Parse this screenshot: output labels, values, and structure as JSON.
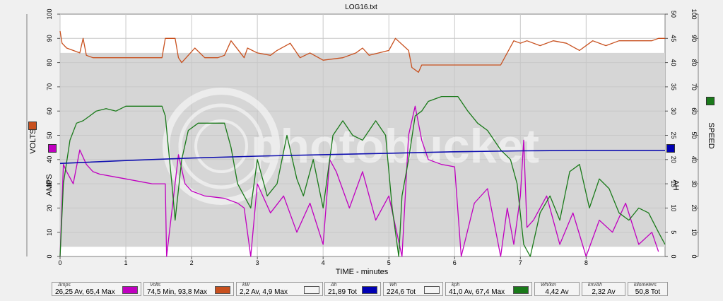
{
  "chart_data": {
    "type": "line",
    "title": "LOG16.txt",
    "xlabel": "TIME - minutes",
    "xlim": [
      0,
      9.2
    ],
    "x_ticks": [
      "0",
      "1",
      "2",
      "3",
      "4",
      "5",
      "6",
      "7",
      "8"
    ],
    "left_axis": {
      "labels": [
        "VOLTS",
        "AMPS"
      ],
      "ylim": [
        0,
        100
      ],
      "ticks": [
        "0",
        "10",
        "20",
        "30",
        "40",
        "50",
        "60",
        "70",
        "80",
        "90",
        "100"
      ]
    },
    "right_axis_inner": {
      "label": "AH",
      "ylim": [
        0,
        50
      ],
      "ticks": [
        "0",
        "5",
        "10",
        "15",
        "20",
        "25",
        "30",
        "35",
        "40",
        "45",
        "50"
      ]
    },
    "right_axis_outer": {
      "label": "SPEED",
      "ylim": [
        0,
        100
      ],
      "ticks": [
        "0",
        "10",
        "20",
        "30",
        "40",
        "50",
        "60",
        "70",
        "80",
        "90",
        "100"
      ]
    },
    "grid": true,
    "series": [
      {
        "name": "Volts",
        "axis": "left",
        "color": "#c8501e",
        "x": [
          0,
          0.03,
          0.1,
          0.2,
          0.3,
          0.35,
          0.4,
          0.5,
          0.7,
          1.0,
          1.3,
          1.55,
          1.6,
          1.65,
          1.75,
          1.8,
          1.85,
          1.95,
          2.05,
          2.2,
          2.4,
          2.5,
          2.6,
          2.8,
          2.85,
          3.0,
          3.2,
          3.3,
          3.5,
          3.65,
          3.8,
          4.0,
          4.3,
          4.5,
          4.6,
          4.7,
          5.0,
          5.1,
          5.3,
          5.35,
          5.45,
          5.5,
          5.6,
          5.8,
          6.0,
          6.3,
          6.5,
          6.7,
          6.9,
          7.0,
          7.1,
          7.3,
          7.5,
          7.7,
          7.9,
          8.1,
          8.3,
          8.5,
          8.8,
          9.0,
          9.1,
          9.2
        ],
        "values": [
          93,
          88,
          86,
          85,
          84,
          90,
          83,
          82,
          82,
          82,
          82,
          82,
          90,
          90,
          90,
          82,
          80,
          83,
          86,
          82,
          82,
          83,
          89,
          82,
          86,
          84,
          83,
          85,
          88,
          82,
          84,
          81,
          82,
          84,
          86,
          83,
          85,
          90,
          85,
          78,
          76,
          79,
          79,
          79,
          79,
          79,
          79,
          79,
          89,
          88,
          89,
          87,
          89,
          88,
          85,
          89,
          87,
          89,
          89,
          89,
          90,
          90
        ]
      },
      {
        "name": "Amps",
        "axis": "left",
        "color": "#c000c0",
        "x": [
          0,
          0.05,
          0.1,
          0.2,
          0.3,
          0.4,
          0.5,
          0.6,
          0.8,
          1.0,
          1.2,
          1.4,
          1.6,
          1.62,
          1.8,
          1.9,
          2.0,
          2.2,
          2.5,
          2.7,
          2.8,
          2.9,
          3.0,
          3.2,
          3.4,
          3.6,
          3.8,
          4.0,
          4.1,
          4.2,
          4.4,
          4.6,
          4.8,
          5.0,
          5.2,
          5.3,
          5.4,
          5.5,
          5.6,
          5.8,
          6.0,
          6.1,
          6.3,
          6.5,
          6.7,
          6.8,
          6.9,
          7.0,
          7.05,
          7.1,
          7.2,
          7.4,
          7.6,
          7.8,
          8.0,
          8.2,
          8.4,
          8.6,
          8.8,
          9.0,
          9.1
        ],
        "values": [
          0,
          38,
          35,
          30,
          44,
          38,
          35,
          34,
          33,
          32,
          31,
          30,
          30,
          0,
          42,
          30,
          27,
          25,
          24,
          22,
          20,
          0,
          30,
          18,
          25,
          10,
          22,
          5,
          40,
          35,
          20,
          35,
          15,
          25,
          0,
          50,
          62,
          48,
          40,
          38,
          37,
          0,
          22,
          28,
          0,
          20,
          5,
          25,
          48,
          12,
          15,
          25,
          5,
          18,
          0,
          15,
          10,
          22,
          5,
          10,
          2
        ]
      },
      {
        "name": "Ah",
        "axis": "right_inner",
        "color": "#1010b0",
        "x": [
          0,
          1,
          2,
          3,
          4,
          5,
          6,
          7,
          8,
          9.2
        ],
        "values": [
          19.2,
          19.8,
          20.3,
          20.7,
          21.0,
          21.3,
          21.6,
          21.8,
          21.9,
          21.9
        ]
      },
      {
        "name": "kph",
        "axis": "right_outer",
        "color": "#1a7a1a",
        "x": [
          0,
          0.05,
          0.15,
          0.25,
          0.35,
          0.45,
          0.55,
          0.7,
          0.85,
          1.0,
          1.2,
          1.4,
          1.55,
          1.6,
          1.7,
          1.75,
          1.85,
          1.95,
          2.1,
          2.3,
          2.5,
          2.6,
          2.7,
          2.8,
          2.9,
          3.0,
          3.15,
          3.3,
          3.45,
          3.6,
          3.7,
          3.85,
          4.0,
          4.15,
          4.3,
          4.45,
          4.6,
          4.8,
          4.95,
          5.05,
          5.15,
          5.2,
          5.3,
          5.4,
          5.5,
          5.6,
          5.8,
          6.05,
          6.2,
          6.35,
          6.5,
          6.7,
          6.85,
          6.95,
          7.05,
          7.15,
          7.3,
          7.45,
          7.6,
          7.75,
          7.9,
          8.05,
          8.2,
          8.35,
          8.5,
          8.65,
          8.8,
          8.95,
          9.1,
          9.2
        ],
        "values": [
          0,
          30,
          48,
          55,
          56,
          58,
          60,
          61,
          60,
          62,
          62,
          62,
          62,
          58,
          30,
          15,
          40,
          52,
          55,
          55,
          55,
          45,
          30,
          25,
          20,
          40,
          25,
          30,
          50,
          32,
          25,
          40,
          20,
          50,
          56,
          50,
          48,
          56,
          50,
          20,
          0,
          25,
          40,
          58,
          60,
          64,
          66,
          66,
          60,
          55,
          52,
          44,
          40,
          30,
          5,
          0,
          18,
          25,
          15,
          35,
          38,
          20,
          32,
          28,
          18,
          15,
          20,
          18,
          10,
          5
        ]
      }
    ]
  },
  "legend": {
    "amps": {
      "name": "Amps",
      "value": "26,25 Av, 65,4 Max",
      "color": "#c000c0"
    },
    "volts": {
      "name": "Volts",
      "value": "74,5 Min, 93,8 Max",
      "color": "#c8501e"
    },
    "kw": {
      "name": "kW",
      "value": "2,2 Av, 4,9 Max",
      "color": "#f4f4f4"
    },
    "ah": {
      "name": "Ah",
      "value": "21,89 Tot",
      "color": "#0000b4"
    },
    "wh": {
      "name": "Wh",
      "value": "224,6 Tot",
      "color": "#f4f4f4"
    },
    "kph": {
      "name": "kph",
      "value": "41,0 Av, 67,4 Max",
      "color": "#1a7a1a"
    },
    "whkm": {
      "name": "Wh/km",
      "value": "4,42 Av"
    },
    "kmah": {
      "name": "km/Ah",
      "value": "2,32 Av"
    },
    "km": {
      "name": "kilometers",
      "value": "50,8 Tot"
    }
  },
  "watermark": "photobucket"
}
